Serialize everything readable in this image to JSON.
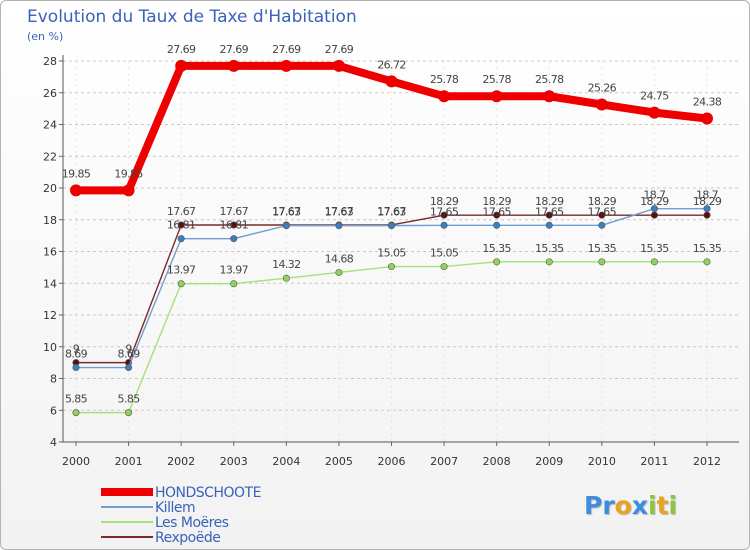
{
  "title": "Evolution du Taux de Taxe d'Habitation",
  "subtitle": "(en %)",
  "logo": {
    "text": "Proxiti",
    "letters": [
      "P",
      "r",
      "o",
      "x",
      "i",
      "t",
      "i"
    ],
    "colors": [
      "#3b8de0",
      "#3b8de0",
      "#e9a322",
      "#3b8de0",
      "#8cc63f",
      "#e9a322",
      "#8cc63f"
    ]
  },
  "chart_data": {
    "type": "line",
    "title": "Evolution du Taux de Taxe d'Habitation",
    "ylabel": "(en %)",
    "xlabel": "",
    "ylim": [
      4,
      28
    ],
    "yticks": [
      4,
      6,
      8,
      10,
      12,
      14,
      16,
      18,
      20,
      22,
      24,
      26,
      28
    ],
    "grid": "horizontal dashed",
    "x": [
      2000,
      2001,
      2002,
      2003,
      2004,
      2005,
      2006,
      2007,
      2008,
      2009,
      2010,
      2011,
      2012
    ],
    "series": [
      {
        "name": "Rexpoëde",
        "color": "#7a2a2a",
        "marker": "#5a1010",
        "values": [
          9,
          9,
          17.67,
          17.67,
          17.67,
          17.67,
          17.67,
          18.29,
          18.29,
          18.29,
          18.29,
          18.29,
          18.29
        ],
        "labels": [
          "9",
          "9",
          "17.67",
          "17.67",
          "17.67",
          "17.67",
          "17.67",
          "18.29",
          "18.29",
          "18.29",
          "18.29",
          "18.29",
          "18.29"
        ]
      },
      {
        "name": "Killem",
        "color": "#6f9ecf",
        "marker": "#3a7fc2",
        "values": [
          8.69,
          8.69,
          16.81,
          16.81,
          17.63,
          17.63,
          17.63,
          17.65,
          17.65,
          17.65,
          17.65,
          18.7,
          18.7
        ],
        "labels": [
          "8.69",
          "8.69",
          "16.81",
          "16.81",
          "17.63",
          "17.63",
          "17.63",
          "17.65",
          "17.65",
          "17.65",
          "17.65",
          "18.7",
          "18.7"
        ]
      },
      {
        "name": "Les Moëres",
        "color": "#a6e07a",
        "marker": "#8fd45a",
        "values": [
          5.85,
          5.85,
          13.97,
          13.97,
          14.32,
          14.68,
          15.05,
          15.05,
          15.35,
          15.35,
          15.35,
          15.35,
          15.35
        ],
        "labels": [
          "5.85",
          "5.85",
          "13.97",
          "13.97",
          "14.32",
          "14.68",
          "15.05",
          "15.05",
          "15.35",
          "15.35",
          "15.35",
          "15.35",
          "15.35"
        ]
      },
      {
        "name": "HONDSCHOOTE",
        "color": "#ee0000",
        "marker": "#ee0000",
        "values": [
          19.85,
          19.85,
          27.69,
          27.69,
          27.69,
          27.69,
          26.72,
          25.78,
          25.78,
          25.78,
          25.26,
          24.75,
          24.38
        ],
        "labels": [
          "19.85",
          "19.85",
          "27.69",
          "27.69",
          "27.69",
          "27.69",
          "26.72",
          "25.78",
          "25.78",
          "25.78",
          "25.26",
          "24.75",
          "24.38"
        ]
      }
    ],
    "legend": {
      "placement": "bottom-left",
      "order": [
        "HONDSCHOOTE",
        "Killem",
        "Les Moëres",
        "Rexpoëde"
      ]
    }
  }
}
